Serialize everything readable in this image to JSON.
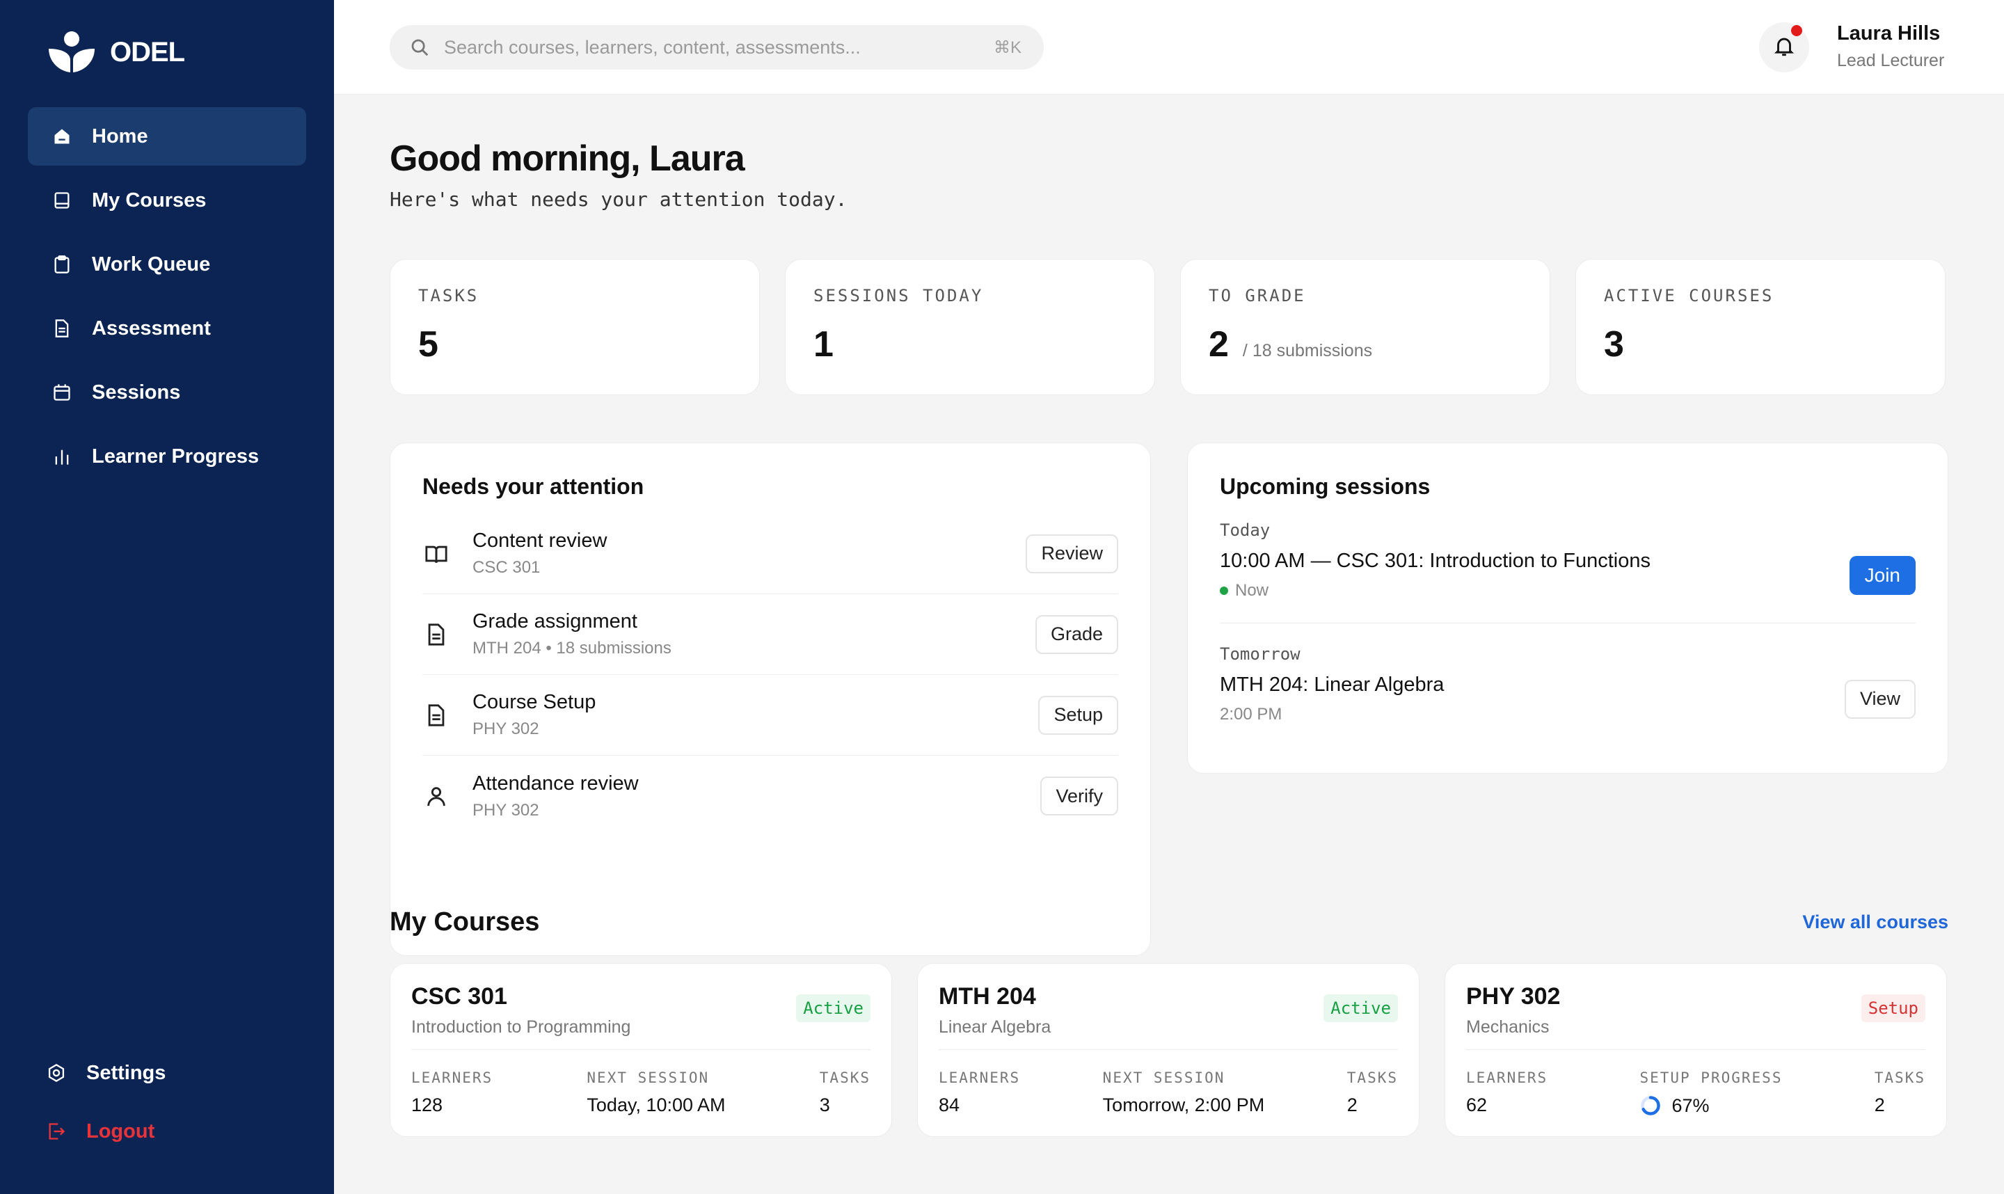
{
  "brand": {
    "name": "ODEL"
  },
  "sidebar": {
    "items": [
      {
        "label": "Home",
        "icon": "home-icon",
        "active": true
      },
      {
        "label": "My Courses",
        "icon": "book-icon"
      },
      {
        "label": "Work Queue",
        "icon": "clipboard-icon"
      },
      {
        "label": "Assessment",
        "icon": "document-icon"
      },
      {
        "label": "Sessions",
        "icon": "calendar-icon"
      },
      {
        "label": "Learner Progress",
        "icon": "bar-chart-icon"
      }
    ],
    "bottom": [
      {
        "label": "Settings",
        "icon": "settings-icon"
      },
      {
        "label": "Logout",
        "icon": "logout-icon",
        "color": "#e8333a"
      }
    ]
  },
  "topbar": {
    "search_placeholder": "Search courses, learners, content, assessments...",
    "search_shortcut": "⌘K",
    "user_name": "Laura Hills",
    "user_role": "Lead Lecturer"
  },
  "greeting": {
    "title": "Good morning, Laura",
    "subtitle": "Here's what needs your attention today."
  },
  "stats": [
    {
      "label": "TASKS",
      "value": "5",
      "sub": ""
    },
    {
      "label": "SESSIONS TODAY",
      "value": "1",
      "sub": ""
    },
    {
      "label": "TO GRADE",
      "value": "2",
      "sub": "/ 18 submissions"
    },
    {
      "label": "ACTIVE COURSES",
      "value": "3",
      "sub": ""
    }
  ],
  "attention": {
    "title": "Needs your attention",
    "items": [
      {
        "title": "Content review",
        "sub": "CSC 301",
        "action": "Review",
        "icon": "open-book-icon"
      },
      {
        "title": "Grade assignment",
        "sub": "MTH 204 • 18 submissions",
        "action": "Grade",
        "icon": "document-icon"
      },
      {
        "title": "Course Setup",
        "sub": "PHY 302",
        "action": "Setup",
        "icon": "document-icon"
      },
      {
        "title": "Attendance review",
        "sub": "PHY 302",
        "action": "Verify",
        "icon": "user-icon"
      }
    ]
  },
  "upcoming": {
    "title": "Upcoming sessions",
    "sessions": [
      {
        "day": "Today",
        "title": "10:00 AM — CSC 301: Introduction to Functions",
        "sub": "Now",
        "action": "Join"
      },
      {
        "day": "Tomorrow",
        "title": "MTH 204: Linear Algebra",
        "sub": "2:00 PM",
        "action": "View"
      }
    ]
  },
  "courses": {
    "title": "My Courses",
    "view_all": "View all courses",
    "items": [
      {
        "code": "CSC 301",
        "name": "Introduction to Programming",
        "status": "Active",
        "m1_label": "LEARNERS",
        "m1_value": "128",
        "m2_label": "NEXT SESSION",
        "m2_value": "Today, 10:00 AM",
        "m3_label": "TASKS",
        "m3_value": "3"
      },
      {
        "code": "MTH 204",
        "name": "Linear Algebra",
        "status": "Active",
        "m1_label": "LEARNERS",
        "m1_value": "84",
        "m2_label": "NEXT SESSION",
        "m2_value": "Tomorrow, 2:00 PM",
        "m3_label": "TASKS",
        "m3_value": "2"
      },
      {
        "code": "PHY 302",
        "name": "Mechanics",
        "status": "Setup",
        "m1_label": "LEARNERS",
        "m1_value": "62",
        "m2_label": "SETUP PROGRESS",
        "m2_value": "67%",
        "setup_progress": 0.67,
        "m3_label": "TASKS",
        "m3_value": "2"
      }
    ]
  },
  "colors": {
    "sidebar_bg": "#0c2453",
    "sidebar_active": "#1b3c6e",
    "primary": "#1f6fe4",
    "active_badge": "#17a043",
    "setup_badge": "#d63434",
    "notification_dot": "#e21b1b"
  }
}
